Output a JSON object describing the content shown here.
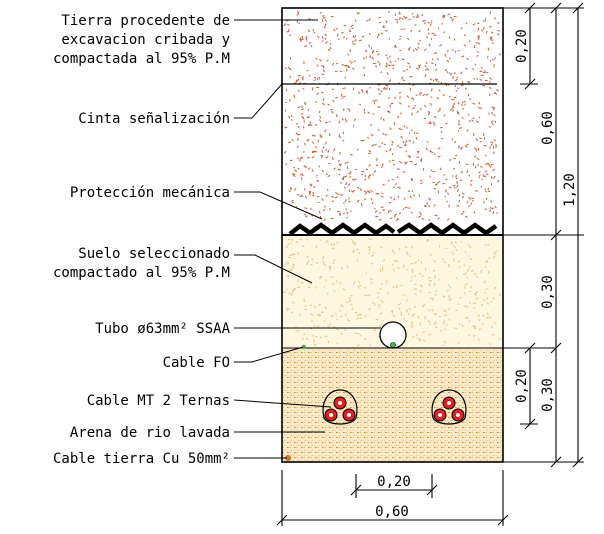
{
  "labels": {
    "tierra_line1": "Tierra procedente de",
    "tierra_line2": "excavacion cribada y",
    "tierra_line3": "compactada al 95% P.M",
    "cinta": "Cinta señalización",
    "proteccion": "Protección mecánica",
    "suelo_line1": "Suelo seleccionado",
    "suelo_line2": "compactado al 95% P.M",
    "tubo": "Tubo ø63mm² SSAA",
    "cable_fo": "Cable FO",
    "cable_mt": "Cable MT 2 Ternas",
    "arena": "Arena de rio lavada",
    "cable_tierra": "Cable tierra Cu 50mm²"
  },
  "dimensions": {
    "top_cover": "0,20",
    "upper_fill": "0,60",
    "total_depth": "1,20",
    "selected_soil": "0,30",
    "sand_inner": "0,20",
    "sand_layer": "0,30",
    "spacing": "0,20",
    "trench_width": "0,60"
  },
  "colors": {
    "upper_fill_dots": "#c8643c",
    "selected_soil_bg": "#fff7df",
    "selected_soil_dots": "#e8c58a",
    "sand_bg": "#fbe9c8",
    "sand_pattern": "#c98a2a",
    "cable_red": "#e32020",
    "fo_green": "#3fbf3f",
    "earth_orange": "#d9731f"
  }
}
